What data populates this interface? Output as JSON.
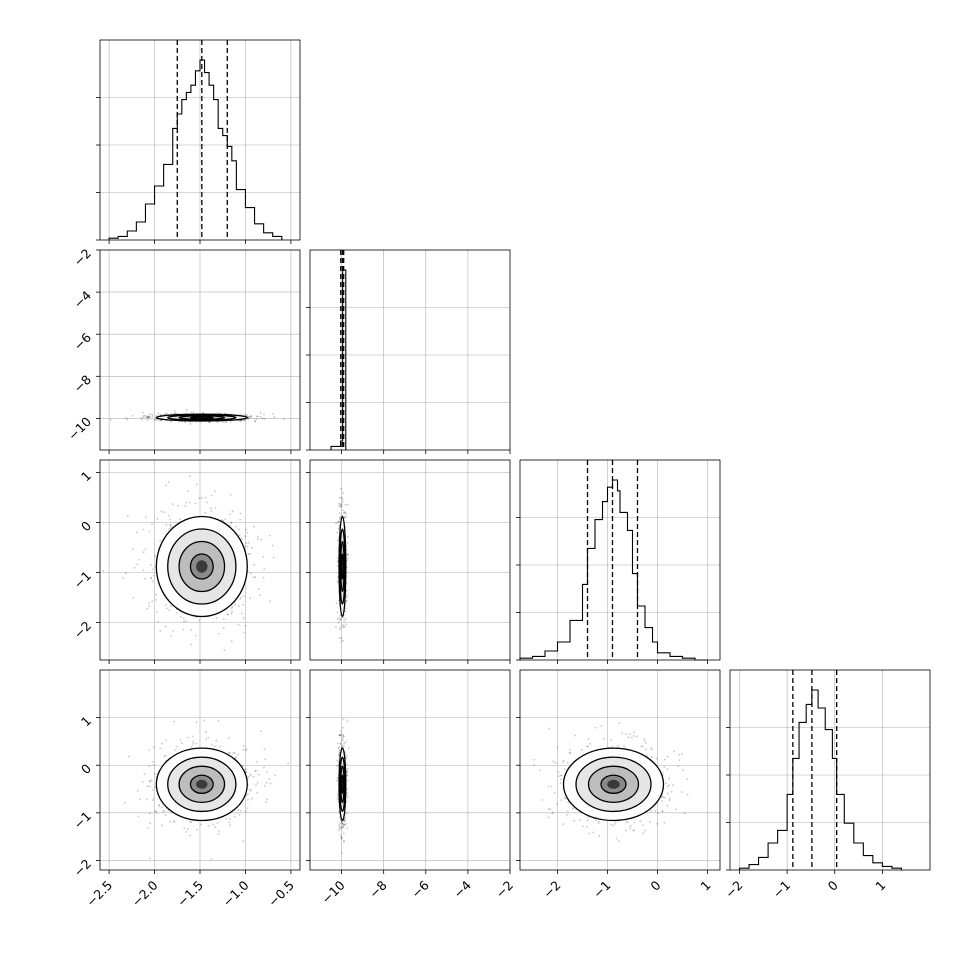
{
  "chart_data": {
    "type": "corner",
    "parameters": [
      {
        "name": "",
        "range": [
          -2.6,
          -0.4
        ],
        "ticks": [
          -2.5,
          -2.0,
          -1.5,
          -1.0,
          -0.5
        ],
        "tick_labels": [
          "−2.5",
          "−2.0",
          "−1.5",
          "−1.0",
          "−0.5"
        ],
        "quantiles": [
          -1.75,
          -1.48,
          -1.2
        ]
      },
      {
        "name": "",
        "range": [
          -11.5,
          -2.0
        ],
        "ticks": [
          -10,
          -8,
          -6,
          -4,
          -2
        ],
        "tick_labels": [
          "−10",
          "−8",
          "−6",
          "−4",
          "−2"
        ],
        "quantiles": [
          -10.04,
          -9.96,
          -9.9
        ]
      },
      {
        "name": "",
        "range": [
          -2.75,
          1.25
        ],
        "ticks": [
          -2,
          -1,
          0,
          1
        ],
        "tick_labels": [
          "−2",
          "−1",
          "0",
          "1"
        ],
        "quantiles": [
          -1.4,
          -0.9,
          -0.4
        ]
      },
      {
        "name": "",
        "range": [
          -2.2,
          2.0
        ],
        "ticks": [
          -2,
          -1,
          0,
          1
        ],
        "tick_labels": [
          "−2",
          "−1",
          "0",
          "1"
        ],
        "quantiles": [
          -0.88,
          -0.48,
          0.04
        ]
      }
    ],
    "histograms": [
      {
        "param": 0,
        "bin_edges": [
          -2.5,
          -2.4,
          -2.3,
          -2.2,
          -2.1,
          -2.0,
          -1.9,
          -1.8,
          -1.75,
          -1.7,
          -1.65,
          -1.6,
          -1.55,
          -1.5,
          -1.45,
          -1.4,
          -1.35,
          -1.3,
          -1.25,
          -1.2,
          -1.15,
          -1.1,
          -1.0,
          -0.9,
          -0.8,
          -0.7,
          -0.6
        ],
        "counts": [
          0.01,
          0.02,
          0.05,
          0.1,
          0.2,
          0.3,
          0.42,
          0.62,
          0.7,
          0.78,
          0.82,
          0.86,
          0.94,
          1.0,
          0.93,
          0.86,
          0.78,
          0.62,
          0.58,
          0.52,
          0.44,
          0.28,
          0.18,
          0.09,
          0.04,
          0.02
        ]
      },
      {
        "param": 1,
        "bin_edges": [
          -10.5,
          -10.05,
          -9.95,
          -9.8
        ],
        "counts": [
          0.02,
          0.05,
          1.0
        ]
      },
      {
        "param": 2,
        "bin_edges": [
          -2.75,
          -2.5,
          -2.25,
          -2.0,
          -1.75,
          -1.5,
          -1.4,
          -1.25,
          -1.1,
          -1.0,
          -0.9,
          -0.8,
          -0.75,
          -0.6,
          -0.5,
          -0.4,
          -0.25,
          -0.1,
          0.0,
          0.25,
          0.5,
          0.75,
          1.0
        ],
        "counts": [
          0.01,
          0.02,
          0.05,
          0.1,
          0.22,
          0.42,
          0.62,
          0.78,
          0.88,
          0.96,
          1.0,
          0.94,
          0.82,
          0.72,
          0.48,
          0.3,
          0.18,
          0.1,
          0.04,
          0.02,
          0.01,
          0.0
        ]
      },
      {
        "param": 3,
        "bin_edges": [
          -2.0,
          -1.8,
          -1.6,
          -1.4,
          -1.2,
          -1.0,
          -0.88,
          -0.75,
          -0.6,
          -0.48,
          -0.35,
          -0.2,
          -0.05,
          0.04,
          0.2,
          0.4,
          0.6,
          0.8,
          1.0,
          1.2,
          1.4
        ],
        "counts": [
          0.01,
          0.03,
          0.07,
          0.15,
          0.22,
          0.42,
          0.62,
          0.82,
          0.92,
          1.0,
          0.9,
          0.78,
          0.62,
          0.42,
          0.26,
          0.15,
          0.08,
          0.04,
          0.02,
          0.01
        ]
      }
    ],
    "pairs": [
      {
        "x_param": 0,
        "y_param": 1,
        "center": [
          -1.48,
          -9.96
        ],
        "spread": [
          0.25,
          0.08
        ]
      },
      {
        "x_param": 0,
        "y_param": 2,
        "center": [
          -1.48,
          -0.88
        ],
        "spread": [
          0.25,
          0.5
        ]
      },
      {
        "x_param": 1,
        "y_param": 2,
        "center": [
          -9.96,
          -0.88
        ],
        "spread": [
          0.08,
          0.5
        ]
      },
      {
        "x_param": 0,
        "y_param": 3,
        "center": [
          -1.48,
          -0.4
        ],
        "spread": [
          0.25,
          0.38
        ]
      },
      {
        "x_param": 1,
        "y_param": 3,
        "center": [
          -9.96,
          -0.4
        ],
        "spread": [
          0.08,
          0.38
        ]
      },
      {
        "x_param": 2,
        "y_param": 3,
        "center": [
          -0.88,
          -0.4
        ],
        "spread": [
          0.5,
          0.38
        ]
      }
    ],
    "contour_levels_sigma": [
      0.5,
      1.0,
      1.5,
      2.0
    ],
    "grid": true,
    "legend": "none",
    "colors": {
      "line": "#000000",
      "grid": "#b0b0b0",
      "scatter": "#000000",
      "density": "#000000"
    }
  }
}
